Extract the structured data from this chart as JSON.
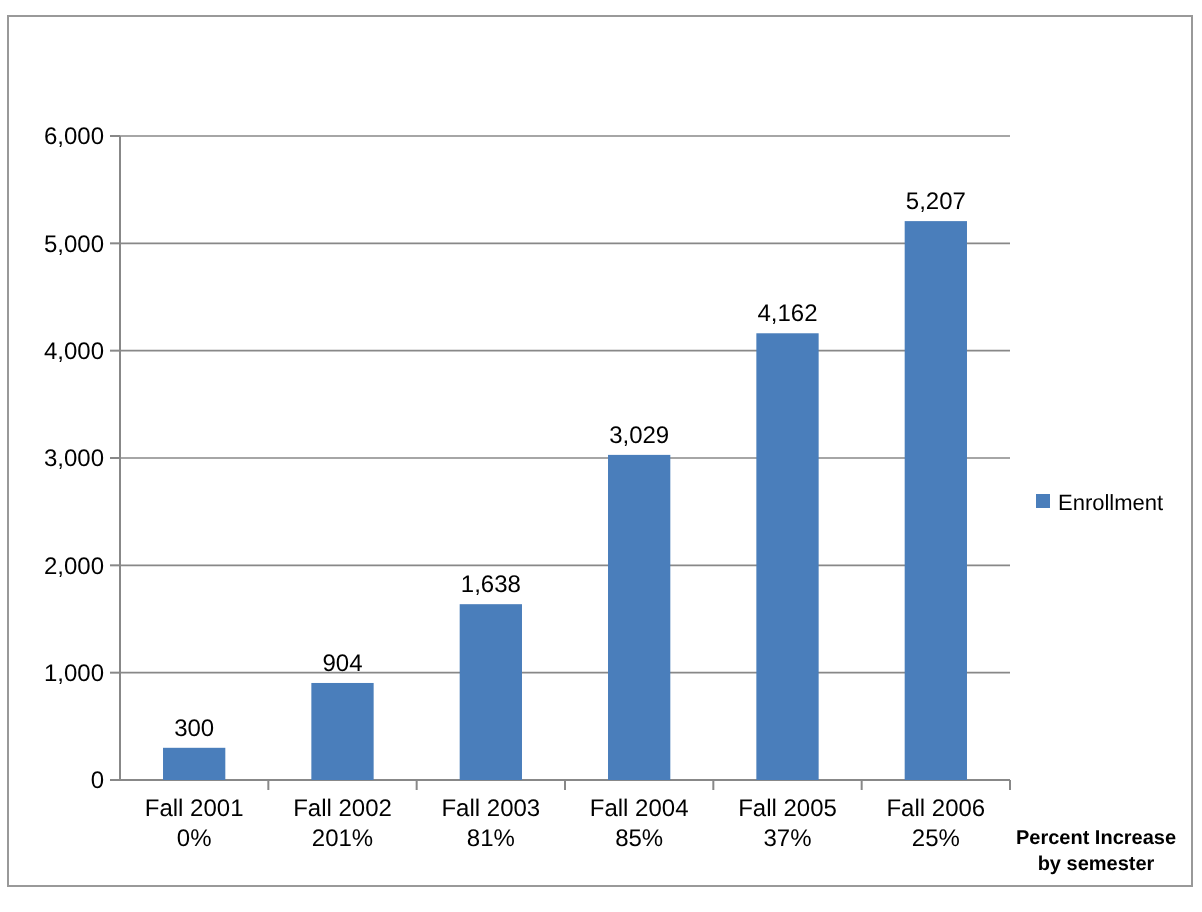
{
  "chart_data": {
    "type": "bar",
    "categories": [
      "Fall 2001\n0%",
      "Fall 2002\n201%",
      "Fall 2003\n81%",
      "Fall 2004\n85%",
      "Fall 2005\n37%",
      "Fall 2006\n25%"
    ],
    "series": [
      {
        "name": "Enrollment",
        "color": "#4a7ebb",
        "values": [
          300,
          904,
          1638,
          3029,
          4162,
          5207
        ],
        "value_labels": [
          "300",
          "904",
          "1,638",
          "3,029",
          "4,162",
          "5,207"
        ]
      }
    ],
    "xlabel": "Percent Increase\nby semester",
    "ylim": [
      0,
      6000
    ],
    "yticks": [
      0,
      {
        "value": 1000,
        "label": "1,000"
      },
      {
        "value": 2000,
        "label": "2,000"
      },
      {
        "value": 3000,
        "label": "3,000"
      },
      {
        "value": 4000,
        "label": "4,000"
      },
      {
        "value": 5000,
        "label": "5,000"
      },
      {
        "value": 6000,
        "label": "6,000"
      }
    ],
    "grid": "y",
    "legend": "right"
  }
}
